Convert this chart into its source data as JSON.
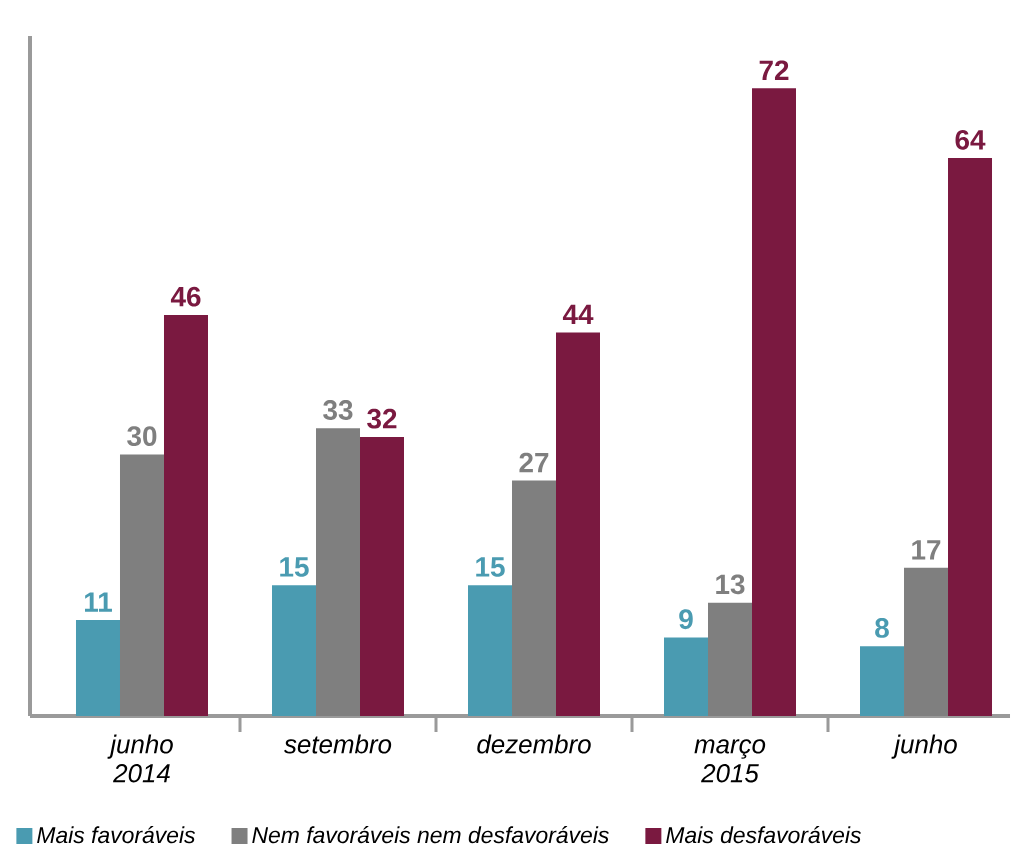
{
  "chart_data": {
    "type": "bar",
    "categories": [
      "junho 2014",
      "setembro",
      "dezembro",
      "março 2015",
      "junho"
    ],
    "series": [
      {
        "name": "Mais favoráveis",
        "color": "#4a9bb1",
        "values": [
          11,
          15,
          15,
          9,
          8
        ]
      },
      {
        "name": "Nem favoráveis nem desfavoráveis",
        "color": "#7f7f7f",
        "values": [
          30,
          33,
          27,
          13,
          17
        ]
      },
      {
        "name": "Mais desfavoráveis",
        "color": "#7a1940",
        "values": [
          46,
          32,
          44,
          72,
          64
        ]
      }
    ],
    "ylim": [
      0,
      78
    ],
    "data_labels": true,
    "legend": "bottom",
    "tick_labels": "x"
  }
}
